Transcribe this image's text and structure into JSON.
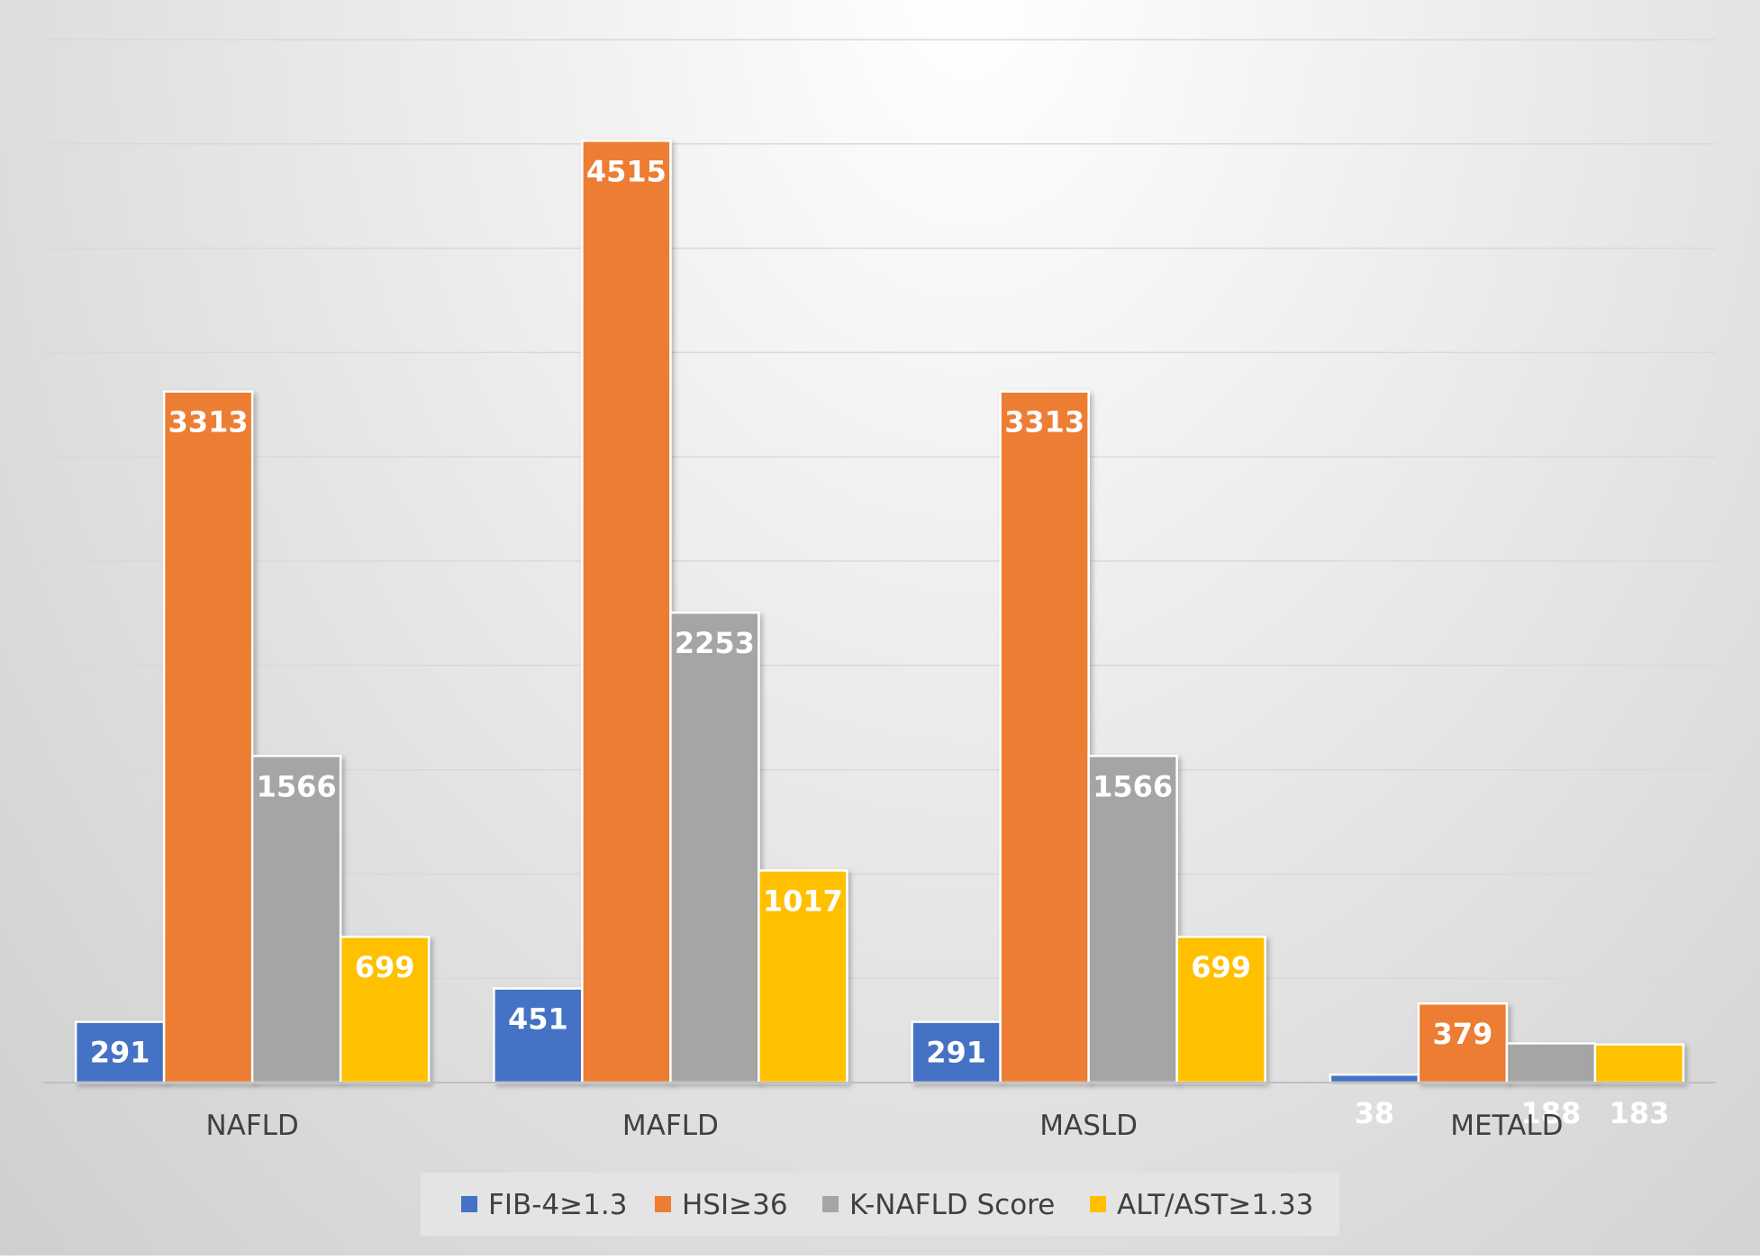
{
  "chart_data": {
    "type": "bar",
    "title": "",
    "xlabel": "",
    "ylabel": "",
    "categories": [
      "NAFLD",
      "MAFLD",
      "MASLD",
      "METALD"
    ],
    "series": [
      {
        "name": "FIB-4≥1.3",
        "color": "#4472C4",
        "values": [
          291,
          451,
          291,
          38
        ]
      },
      {
        "name": "HSI≥36",
        "color": "#ED7D31",
        "values": [
          3313,
          4515,
          3313,
          379
        ]
      },
      {
        "name": "K-NAFLD Score",
        "color": "#A5A5A5",
        "values": [
          1566,
          2253,
          1566,
          188
        ]
      },
      {
        "name": "ALT/AST≥1.33",
        "color": "#FFC000",
        "values": [
          699,
          1017,
          699,
          183
        ]
      }
    ],
    "ylim": [
      0,
      5000
    ],
    "grid": true,
    "legend_position": "bottom"
  }
}
